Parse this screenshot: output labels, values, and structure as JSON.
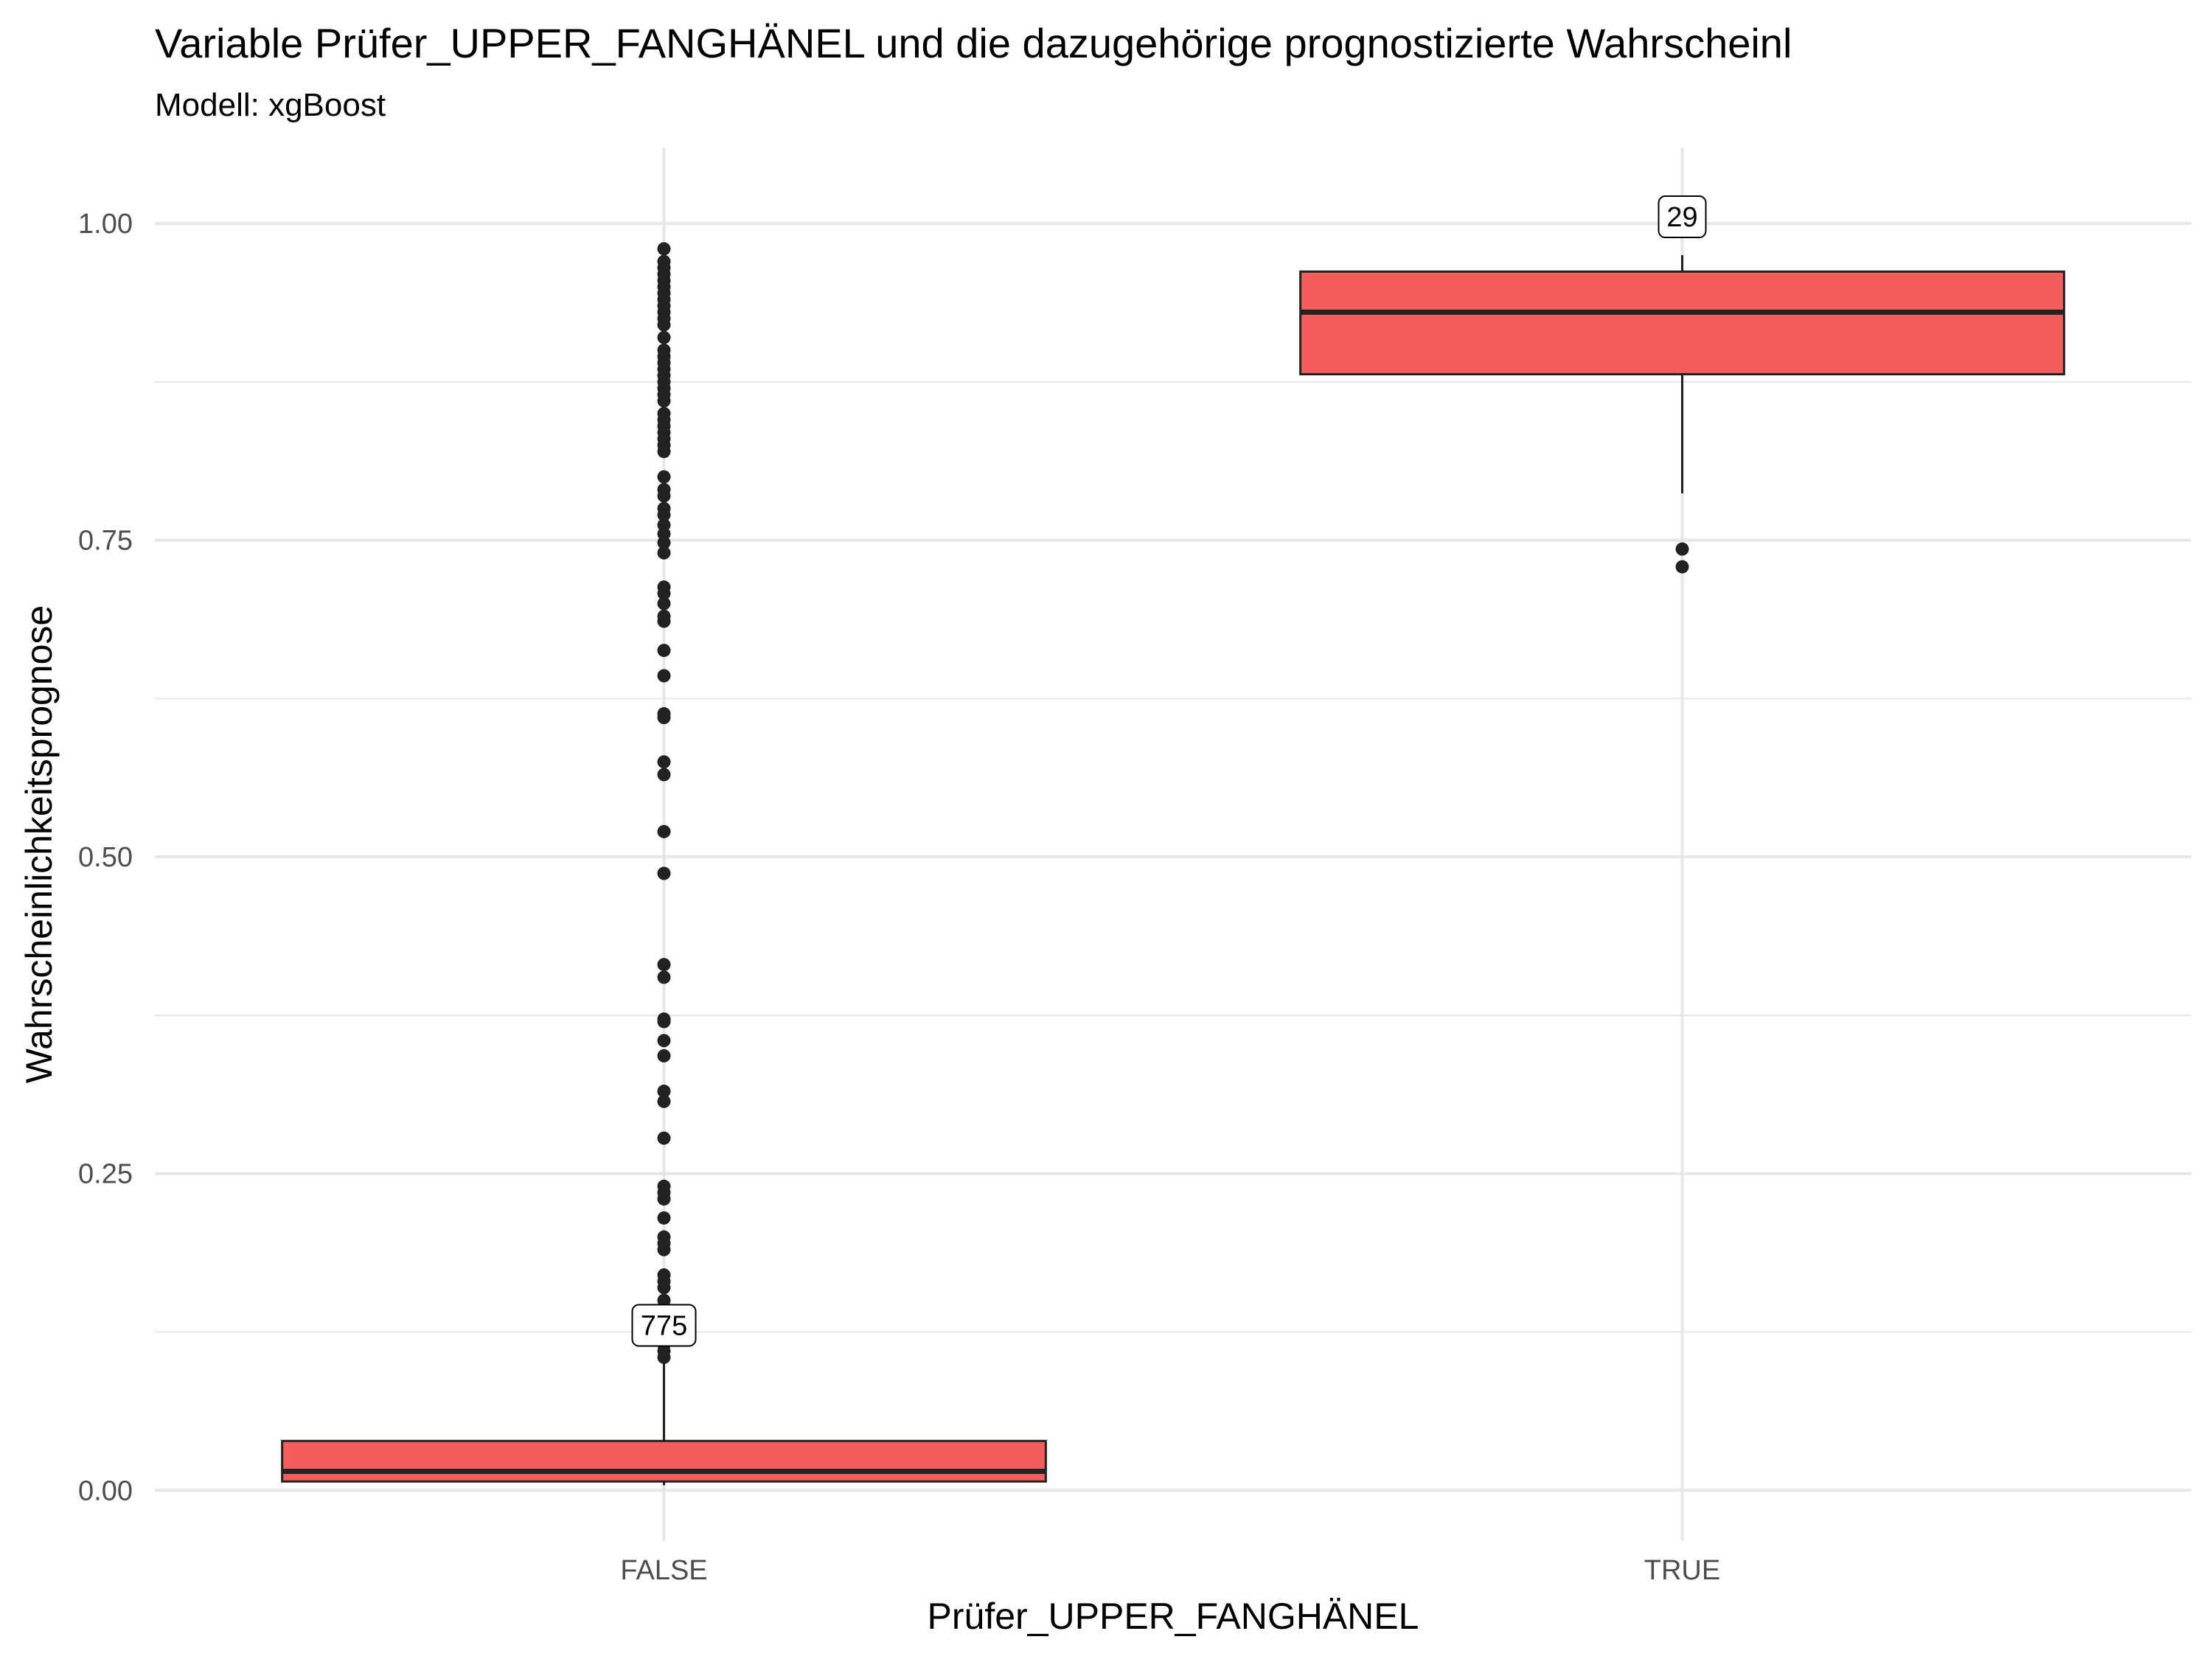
{
  "chart_data": {
    "type": "box",
    "title": "Variable Prüfer_UPPER_FANGHÄNEL und die dazugehörige prognostizierte Wahrscheinl",
    "subtitle": "Modell: xgBoost",
    "xlabel": "Prüfer_UPPER_FANGHÄNEL",
    "ylabel": "Wahrscheinlichkeitsprognose",
    "categories": [
      "FALSE",
      "TRUE"
    ],
    "ylim": [
      -0.04,
      1.06
    ],
    "yticks": [
      0.0,
      0.25,
      0.5,
      0.75,
      1.0
    ],
    "ytick_labels": [
      "0.00",
      "0.25",
      "0.50",
      "0.75",
      "1.00"
    ],
    "grid": true,
    "legend": "none",
    "colors": {
      "box_fill": "#F35E5A",
      "box_line": "#222222",
      "grid": "#E6E6E6",
      "point": "#222222",
      "label_border": "#000000"
    },
    "boxes": [
      {
        "category": "FALSE",
        "count_label": "775",
        "whisker_low": 0.004,
        "q1": 0.007,
        "median": 0.015,
        "q3": 0.039,
        "whisker_high": 0.1,
        "outliers": [
          0.105,
          0.11,
          0.115,
          0.12,
          0.125,
          0.13,
          0.135,
          0.14,
          0.145,
          0.15,
          0.16,
          0.165,
          0.17,
          0.19,
          0.195,
          0.2,
          0.215,
          0.23,
          0.235,
          0.24,
          0.278,
          0.307,
          0.315,
          0.343,
          0.355,
          0.37,
          0.372,
          0.405,
          0.415,
          0.487,
          0.52,
          0.565,
          0.575,
          0.61,
          0.613,
          0.643,
          0.663,
          0.686,
          0.69,
          0.7,
          0.708,
          0.713,
          0.74,
          0.748,
          0.755,
          0.762,
          0.77,
          0.775,
          0.785,
          0.79,
          0.8,
          0.82,
          0.825,
          0.83,
          0.835,
          0.84,
          0.845,
          0.85,
          0.86,
          0.865,
          0.87,
          0.875,
          0.88,
          0.885,
          0.89,
          0.895,
          0.9,
          0.91,
          0.92,
          0.925,
          0.93,
          0.935,
          0.94,
          0.945,
          0.95,
          0.955,
          0.96,
          0.965,
          0.97,
          0.98
        ]
      },
      {
        "category": "TRUE",
        "count_label": "29",
        "whisker_low": 0.787,
        "q1": 0.881,
        "median": 0.93,
        "q3": 0.962,
        "whisker_high": 0.975,
        "outliers": [
          0.729,
          0.743
        ]
      }
    ]
  }
}
